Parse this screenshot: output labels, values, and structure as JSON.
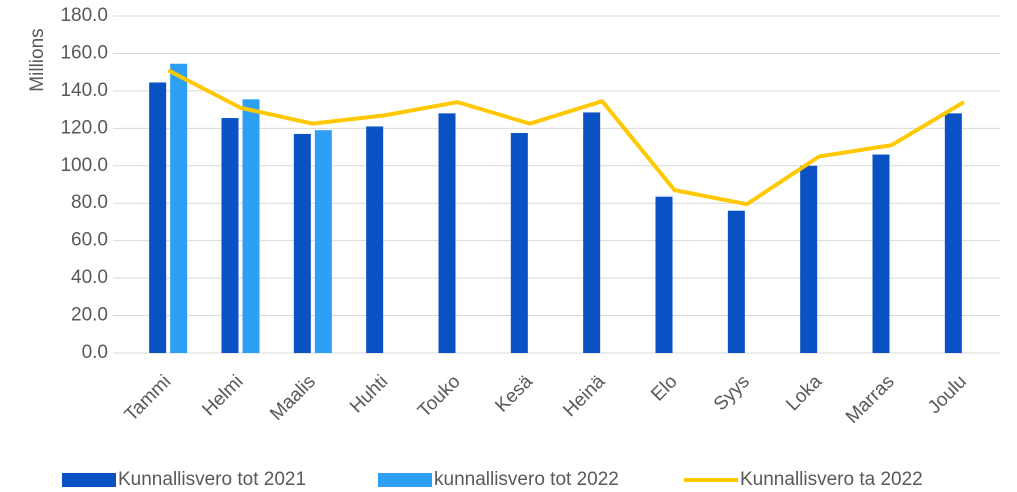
{
  "chart_data": {
    "type": "bar",
    "y_label": "Millions",
    "categories": [
      "Tammi",
      "Helmi",
      "Maalis",
      "Huhti",
      "Touko",
      "Kesä",
      "Heinä",
      "Elo",
      "Syys",
      "Loka",
      "Marras",
      "Joulu"
    ],
    "series": [
      {
        "name": "Kunnallisvero tot 2021",
        "color": "#0a52c4",
        "values": [
          144.5,
          125.5,
          117,
          121,
          128,
          117.5,
          128.5,
          83.5,
          76,
          100,
          106,
          128
        ]
      },
      {
        "name": "kunnallisvero tot 2022",
        "color": "#2d9ff5",
        "values": [
          154.5,
          135.5,
          119,
          null,
          null,
          null,
          null,
          null,
          null,
          null,
          null,
          null
        ]
      },
      {
        "name": "Kunnallisvero ta 2022",
        "color": "#ffc800",
        "type": "line",
        "values": [
          151,
          131,
          122.5,
          127,
          134,
          122.5,
          134.5,
          87,
          79.5,
          105,
          111,
          134
        ]
      }
    ],
    "ylim": [
      0,
      180
    ],
    "yticks": [
      {
        "value": 0,
        "label": "0.0"
      },
      {
        "value": 20,
        "label": "20.0"
      },
      {
        "value": 40,
        "label": "40.0"
      },
      {
        "value": 60,
        "label": "60.0"
      },
      {
        "value": 80,
        "label": "80.0"
      },
      {
        "value": 100,
        "label": "100.0"
      },
      {
        "value": 120,
        "label": "120.0"
      },
      {
        "value": 140,
        "label": "140.0"
      },
      {
        "value": 160,
        "label": "160.0"
      },
      {
        "value": 180,
        "label": "180.0"
      }
    ],
    "grid": true,
    "legend": "bottom"
  }
}
